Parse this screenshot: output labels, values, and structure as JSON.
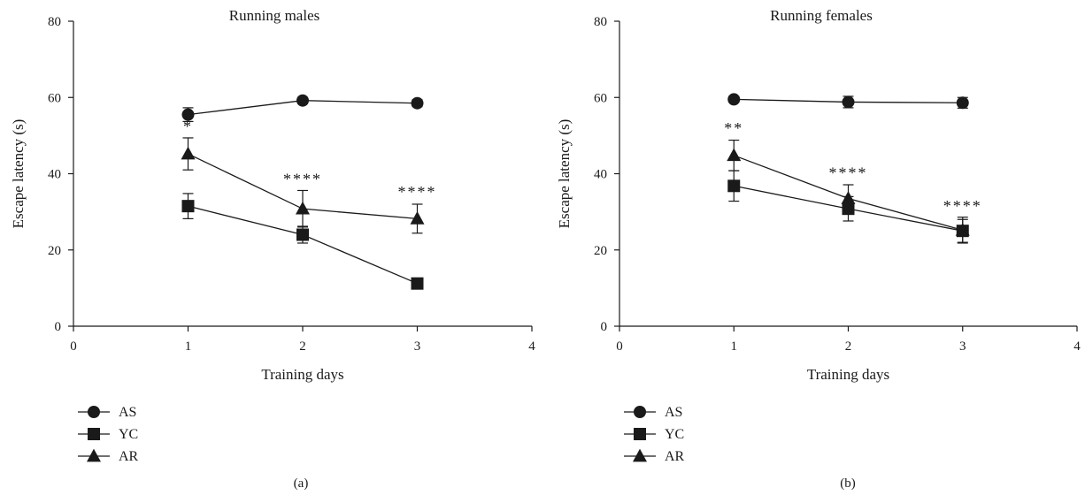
{
  "chart_data": [
    {
      "type": "line",
      "title": "Running males",
      "xlabel": "Training days",
      "ylabel": "Escape latency (s)",
      "xlim": [
        0,
        4
      ],
      "ylim": [
        0,
        80
      ],
      "xticks": [
        "0",
        "1",
        "2",
        "3",
        "4"
      ],
      "yticks": [
        "0",
        "20",
        "40",
        "60",
        "80"
      ],
      "panel_label": "(a)",
      "grid": false,
      "legend": "below",
      "x": [
        1,
        2,
        3
      ],
      "series": [
        {
          "name": "AS",
          "marker": "circle",
          "values": [
            55.5,
            59.2,
            58.5
          ],
          "errors": [
            1.8,
            0.8,
            0.9
          ]
        },
        {
          "name": "YC",
          "marker": "square",
          "values": [
            31.5,
            24.0,
            11.2
          ],
          "errors": [
            3.3,
            2.2,
            0.8
          ]
        },
        {
          "name": "AR",
          "marker": "triangle",
          "values": [
            45.2,
            30.8,
            28.2
          ],
          "errors": [
            4.2,
            4.8,
            3.8
          ]
        }
      ],
      "annotations": [
        {
          "x": 1,
          "y": 51.0,
          "text": "*"
        },
        {
          "x": 2,
          "y": 37.2,
          "text": "****"
        },
        {
          "x": 3,
          "y": 33.8,
          "text": "****"
        }
      ]
    },
    {
      "type": "line",
      "title": "Running females",
      "xlabel": "Training days",
      "ylabel": "Escape latency (s)",
      "xlim": [
        0,
        4
      ],
      "ylim": [
        0,
        80
      ],
      "xticks": [
        "0",
        "1",
        "2",
        "3",
        "4"
      ],
      "yticks": [
        "0",
        "20",
        "40",
        "60",
        "80"
      ],
      "panel_label": "(b)",
      "grid": false,
      "legend": "below",
      "x": [
        1,
        2,
        3
      ],
      "series": [
        {
          "name": "AS",
          "marker": "circle",
          "values": [
            59.5,
            58.8,
            58.6
          ],
          "errors": [
            0.8,
            1.5,
            1.4
          ]
        },
        {
          "name": "YC",
          "marker": "square",
          "values": [
            36.8,
            30.8,
            25.0
          ],
          "errors": [
            4.0,
            3.2,
            3.0
          ]
        },
        {
          "name": "AR",
          "marker": "triangle",
          "values": [
            44.8,
            33.5,
            25.2
          ],
          "errors": [
            4.0,
            3.6,
            3.4
          ]
        }
      ],
      "annotations": [
        {
          "x": 1,
          "y": 50.5,
          "text": "**"
        },
        {
          "x": 2,
          "y": 38.8,
          "text": "****"
        },
        {
          "x": 3,
          "y": 30.2,
          "text": "****"
        }
      ]
    }
  ]
}
